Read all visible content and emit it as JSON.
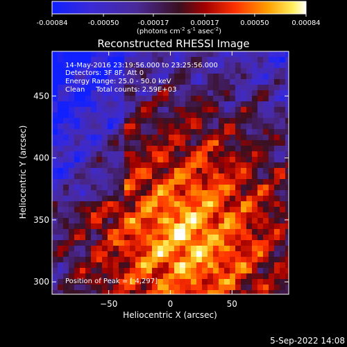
{
  "chart_data": {
    "type": "heatmap",
    "title": "Reconstructed RHESSI Image",
    "xlabel": "Heliocentric X (arcsec)",
    "ylabel": "Heliocentric Y (arcsec)",
    "xlim": [
      -96,
      96
    ],
    "ylim": [
      290,
      486
    ],
    "x_ticks": [
      -50,
      0,
      50
    ],
    "y_ticks": [
      300,
      350,
      400,
      450
    ],
    "colorbar": {
      "ticks": [
        "-0.00084",
        "-0.00050",
        "-0.00017",
        "0.00017",
        "0.00050",
        "0.00084"
      ],
      "min": -0.00084,
      "max": 0.00084,
      "units_text": "(photons cm",
      "units_exp1": "-2",
      "units_mid": " s",
      "units_exp2": "-1",
      "units_mid2": " asec",
      "units_exp3": "-2",
      "units_end": ")"
    },
    "annotations": [
      "14-May-2016 23:19:56.000 to 23:25:56.000",
      "Detectors: 3F 8F, Att 0",
      "Energy Range: 25.0 - 50.0 keV",
      "Clean     Total counts: 2.59E+03"
    ],
    "peak_label": "Position of Peak = [ 4,297]",
    "timestamp": "5-Sep-2022 14:08",
    "colors": {
      "background": "#000000",
      "foreground": "#ffffff"
    }
  }
}
